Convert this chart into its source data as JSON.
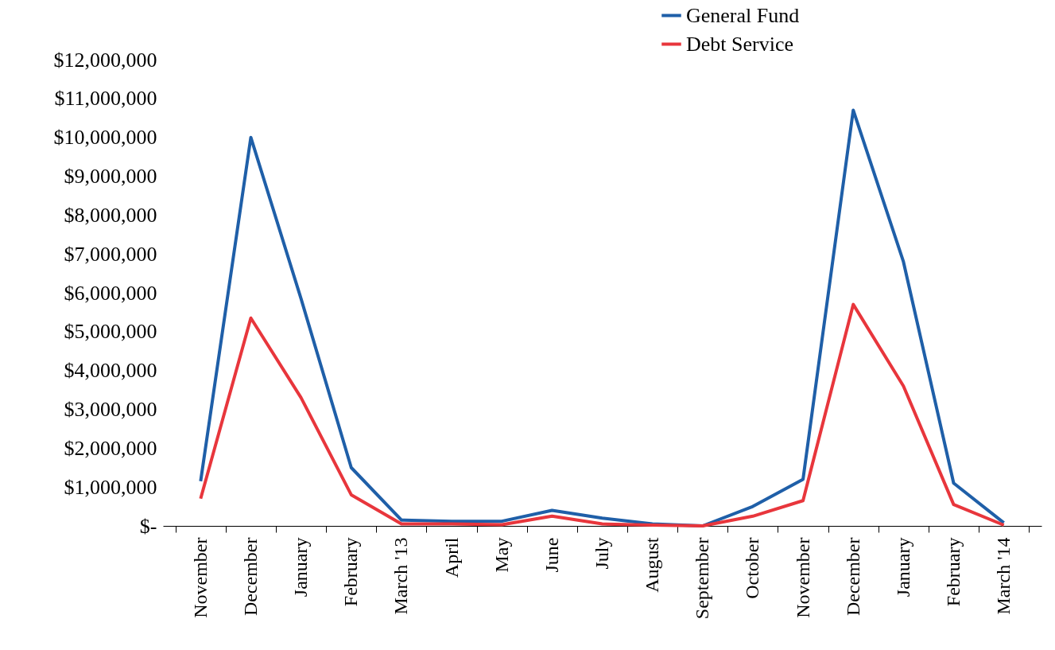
{
  "chart_data": {
    "type": "line",
    "categories": [
      "November",
      "December",
      "January",
      "February",
      "March '13",
      "April",
      "May",
      "June",
      "July",
      "August",
      "September",
      "October",
      "November",
      "December",
      "January",
      "February",
      "March '14"
    ],
    "series": [
      {
        "name": "General Fund",
        "color": "#1f5fa8",
        "values": [
          1150000,
          10000000,
          5850000,
          1500000,
          150000,
          120000,
          120000,
          400000,
          200000,
          50000,
          0,
          500000,
          1200000,
          10700000,
          6800000,
          1100000,
          80000
        ]
      },
      {
        "name": "Debt Service",
        "color": "#e8363c",
        "values": [
          700000,
          5350000,
          3300000,
          800000,
          50000,
          50000,
          30000,
          250000,
          50000,
          20000,
          0,
          250000,
          650000,
          5700000,
          3600000,
          550000,
          20000
        ]
      }
    ],
    "ylim": [
      0,
      12000000
    ],
    "yticks": [
      {
        "value": 0,
        "label": "$-"
      },
      {
        "value": 1000000,
        "label": "$1,000,000"
      },
      {
        "value": 2000000,
        "label": "$2,000,000"
      },
      {
        "value": 3000000,
        "label": "$3,000,000"
      },
      {
        "value": 4000000,
        "label": "$4,000,000"
      },
      {
        "value": 5000000,
        "label": "$5,000,000"
      },
      {
        "value": 6000000,
        "label": "$6,000,000"
      },
      {
        "value": 7000000,
        "label": "$7,000,000"
      },
      {
        "value": 8000000,
        "label": "$8,000,000"
      },
      {
        "value": 9000000,
        "label": "$9,000,000"
      },
      {
        "value": 10000000,
        "label": "$10,000,000"
      },
      {
        "value": 11000000,
        "label": "$11,000,000"
      },
      {
        "value": 12000000,
        "label": "$12,000,000"
      }
    ],
    "grid": false,
    "legend": "top right",
    "marker": "none",
    "line_style": "solid"
  }
}
